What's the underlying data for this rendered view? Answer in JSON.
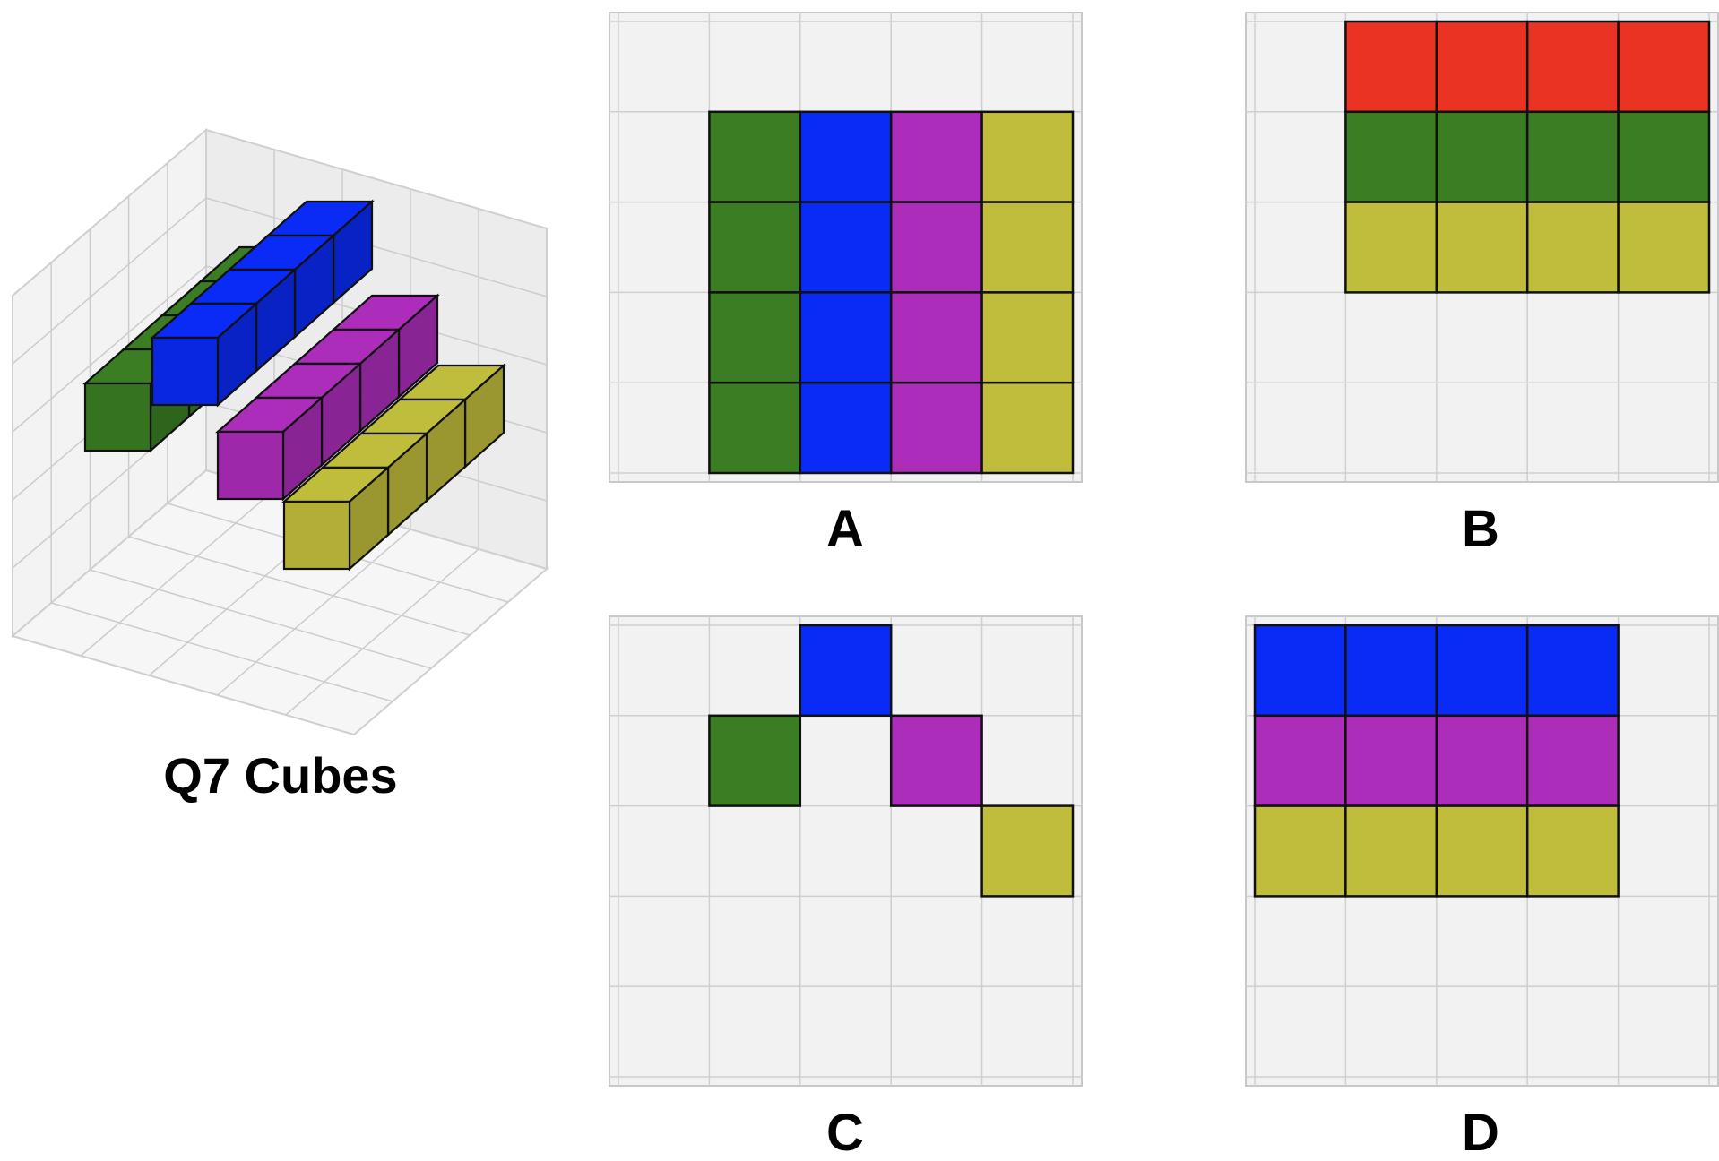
{
  "title": "Q7 Cubes",
  "colors": {
    "green": "#3a7d22",
    "blue": "#0a2af5",
    "magenta": "#ab2db9",
    "yellow": "#c1bd3c",
    "red": "#ea3323"
  },
  "cube3d": {
    "layers": [
      {
        "color": "green",
        "cubes": 4
      },
      {
        "color": "blue",
        "cubes": 4
      },
      {
        "color": "magenta",
        "cubes": 4
      },
      {
        "color": "yellow",
        "cubes": 4
      }
    ]
  },
  "options": [
    {
      "label": "A",
      "rows": [
        [
          "",
          "",
          "",
          "",
          ""
        ],
        [
          "",
          "green",
          "blue",
          "magenta",
          "yellow"
        ],
        [
          "",
          "green",
          "blue",
          "magenta",
          "yellow"
        ],
        [
          "",
          "green",
          "blue",
          "magenta",
          "yellow"
        ],
        [
          "",
          "green",
          "blue",
          "magenta",
          "yellow"
        ]
      ]
    },
    {
      "label": "B",
      "rows": [
        [
          "",
          "red",
          "red",
          "red",
          "red"
        ],
        [
          "",
          "green",
          "green",
          "green",
          "green"
        ],
        [
          "",
          "yellow",
          "yellow",
          "yellow",
          "yellow"
        ],
        [
          "",
          "",
          "",
          "",
          ""
        ],
        [
          "",
          "",
          "",
          "",
          ""
        ]
      ]
    },
    {
      "label": "C",
      "rows": [
        [
          "",
          "",
          "blue",
          "",
          ""
        ],
        [
          "",
          "green",
          "",
          "magenta",
          ""
        ],
        [
          "",
          "",
          "",
          "",
          "yellow"
        ],
        [
          "",
          "",
          "",
          "",
          ""
        ],
        [
          "",
          "",
          "",
          "",
          ""
        ]
      ]
    },
    {
      "label": "D",
      "rows": [
        [
          "blue",
          "blue",
          "blue",
          "blue",
          ""
        ],
        [
          "magenta",
          "magenta",
          "magenta",
          "magenta",
          ""
        ],
        [
          "yellow",
          "yellow",
          "yellow",
          "yellow",
          ""
        ],
        [
          "",
          "",
          "",
          "",
          ""
        ],
        [
          "",
          "",
          "",
          "",
          ""
        ]
      ]
    }
  ]
}
